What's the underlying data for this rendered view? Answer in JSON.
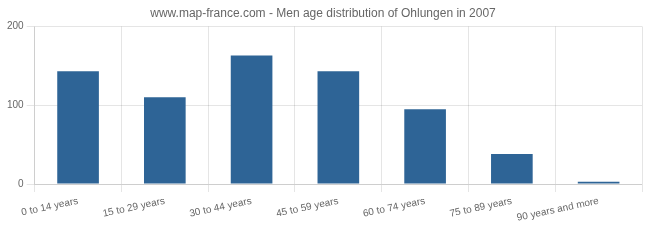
{
  "chart_data": {
    "type": "bar",
    "title": "www.map-france.com - Men age distribution of Ohlungen in 2007",
    "categories": [
      "0 to 14 years",
      "15 to 29 years",
      "30 to 44 years",
      "45 to 59 years",
      "60 to 74 years",
      "75 to 89 years",
      "90 years and more"
    ],
    "values": [
      143,
      110,
      163,
      143,
      95,
      38,
      3
    ],
    "color": "#2e6496",
    "ylim": [
      0,
      200
    ],
    "yticks": [
      0,
      100,
      200
    ],
    "grid": true
  }
}
